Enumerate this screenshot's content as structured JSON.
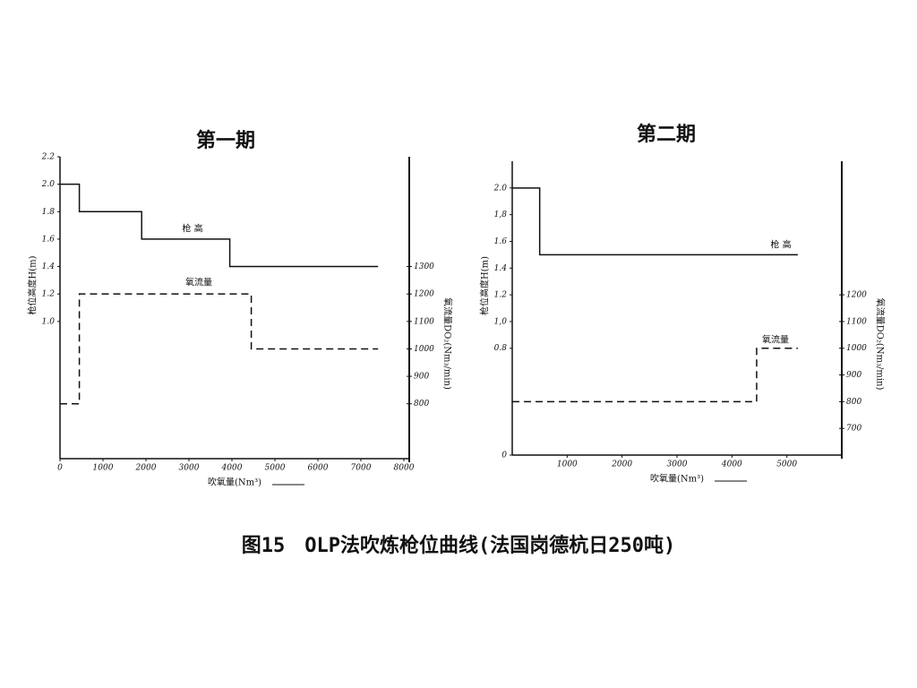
{
  "chart_data": [
    {
      "type": "line",
      "title": "第一期",
      "x_label": "吹氧量(Nm³)",
      "y_label": "枪位高度H(m)",
      "y2_label": "氧流量DO₂(Nm₃/min)",
      "xlim": [
        0,
        8000
      ],
      "xticks": [
        0,
        1000,
        2000,
        3000,
        4000,
        5000,
        6000,
        7000,
        8000
      ],
      "ylim": [
        0,
        2.2
      ],
      "yticks": [
        {
          "value": 1,
          "label": "1.0"
        },
        1.2,
        1.4,
        1.6,
        1.8,
        {
          "value": 2,
          "label": "2.0"
        },
        2.2
      ],
      "y2lim": [
        600,
        1700
      ],
      "y2ticks": [
        800,
        900,
        1000,
        1100,
        1200,
        1300
      ],
      "series": [
        {
          "name": "枪 高",
          "color": "#111111",
          "line_style": "solid",
          "x": [
            0,
            450,
            450,
            1900,
            1900,
            3950,
            3950,
            7400
          ],
          "values": [
            2.0,
            2.0,
            1.8,
            1.8,
            1.6,
            1.6,
            1.4,
            1.4
          ]
        },
        {
          "name": "氧流量",
          "color": "#111111",
          "line_style": "dashed",
          "axis": "y2",
          "x": [
            0,
            450,
            450,
            4450,
            4450,
            7400
          ],
          "values": [
            800,
            800,
            1200,
            1200,
            1000,
            1000
          ]
        }
      ]
    },
    {
      "type": "line",
      "title": "第二期",
      "x_label": "吹氧量(Nm³)",
      "y_label": "枪位高度H(m)",
      "y2_label": "氧流量DO₂(Nm₃/min)",
      "xlim": [
        0,
        6000
      ],
      "xticks": [
        1000,
        2000,
        3000,
        4000,
        5000
      ],
      "ylim": [
        0,
        2.2
      ],
      "yticks": [
        0,
        0.8,
        {
          "value": 1,
          "label": "1,0"
        },
        1.2,
        1.4,
        1.6,
        {
          "value": 1.8,
          "label": "1,8"
        },
        {
          "value": 2,
          "label": "2.0"
        }
      ],
      "y2lim": [
        600,
        1700
      ],
      "y2ticks": [
        700,
        800,
        900,
        1000,
        1100,
        1200
      ],
      "series": [
        {
          "name": "枪 高",
          "color": "#111111",
          "line_style": "solid",
          "x": [
            0,
            500,
            500,
            5200
          ],
          "values": [
            2.0,
            2.0,
            1.5,
            1.5
          ]
        },
        {
          "name": "氧流量",
          "color": "#111111",
          "line_style": "dashed",
          "axis": "y2",
          "x": [
            0,
            4450,
            4450,
            5200
          ],
          "values": [
            800,
            800,
            1000,
            1000
          ]
        }
      ]
    }
  ],
  "caption": "图15　OLP法吹炼枪位曲线(法国岗德杭日250吨)"
}
